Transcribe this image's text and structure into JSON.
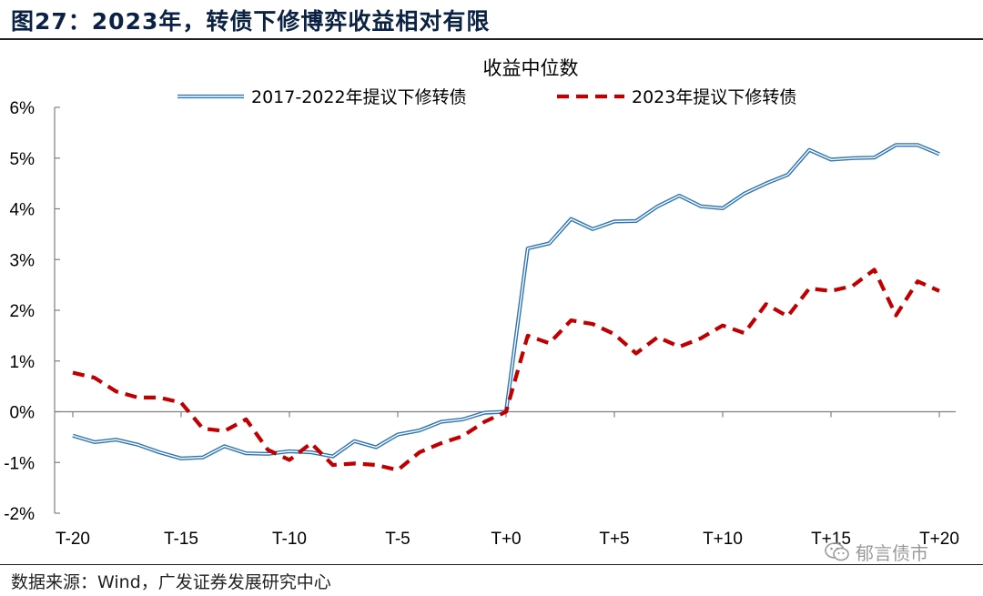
{
  "figure": {
    "title": "图27：2023年，转债下修博弈收益相对有限",
    "source": "数据来源：Wind，广发证券发展研究中心",
    "watermark": "郁言债市",
    "watermark_icon": "wechat-icon"
  },
  "chart_data": {
    "type": "line",
    "title": "收益中位数",
    "xlabel": "",
    "ylabel": "",
    "x": [
      "T-20",
      "T-19",
      "T-18",
      "T-17",
      "T-16",
      "T-15",
      "T-14",
      "T-13",
      "T-12",
      "T-11",
      "T-10",
      "T-9",
      "T-8",
      "T-7",
      "T-6",
      "T-5",
      "T-4",
      "T-3",
      "T-2",
      "T-1",
      "T+0",
      "T+1",
      "T+2",
      "T+3",
      "T+4",
      "T+5",
      "T+6",
      "T+7",
      "T+8",
      "T+9",
      "T+10",
      "T+11",
      "T+12",
      "T+13",
      "T+14",
      "T+15",
      "T+16",
      "T+17",
      "T+18",
      "T+19",
      "T+20"
    ],
    "x_tick_labels": [
      "T-20",
      "T-15",
      "T-10",
      "T-5",
      "T+0",
      "T+5",
      "T+10",
      "T+15",
      "T+20"
    ],
    "y_tick_labels": [
      "-2%",
      "-1%",
      "0%",
      "1%",
      "2%",
      "3%",
      "4%",
      "5%",
      "6%"
    ],
    "ylim": [
      -2,
      6
    ],
    "y_unit": "%",
    "grid": false,
    "legend_position": "top",
    "series": [
      {
        "name": "2017-2022年提议下修转债",
        "style": "double-line",
        "color": "#2e75b6",
        "values": [
          -0.47,
          -0.6,
          -0.55,
          -0.65,
          -0.8,
          -0.92,
          -0.9,
          -0.68,
          -0.82,
          -0.83,
          -0.78,
          -0.8,
          -0.88,
          -0.58,
          -0.7,
          -0.45,
          -0.37,
          -0.2,
          -0.15,
          -0.02,
          0.0,
          3.22,
          3.32,
          3.8,
          3.6,
          3.75,
          3.76,
          4.05,
          4.26,
          4.05,
          4.01,
          4.3,
          4.5,
          4.67,
          5.16,
          4.97,
          5.0,
          5.01,
          5.26,
          5.26,
          5.08
        ]
      },
      {
        "name": "2023年提议下修转债",
        "style": "dashed",
        "color": "#c00000",
        "values": [
          0.77,
          0.67,
          0.4,
          0.28,
          0.28,
          0.18,
          -0.33,
          -0.38,
          -0.15,
          -0.75,
          -0.95,
          -0.62,
          -1.05,
          -1.02,
          -1.05,
          -1.15,
          -0.8,
          -0.62,
          -0.48,
          -0.2,
          0.0,
          1.5,
          1.35,
          1.8,
          1.73,
          1.53,
          1.15,
          1.47,
          1.28,
          1.45,
          1.7,
          1.55,
          2.12,
          1.88,
          2.43,
          2.38,
          2.48,
          2.8,
          1.9,
          2.57,
          2.38
        ]
      }
    ]
  }
}
